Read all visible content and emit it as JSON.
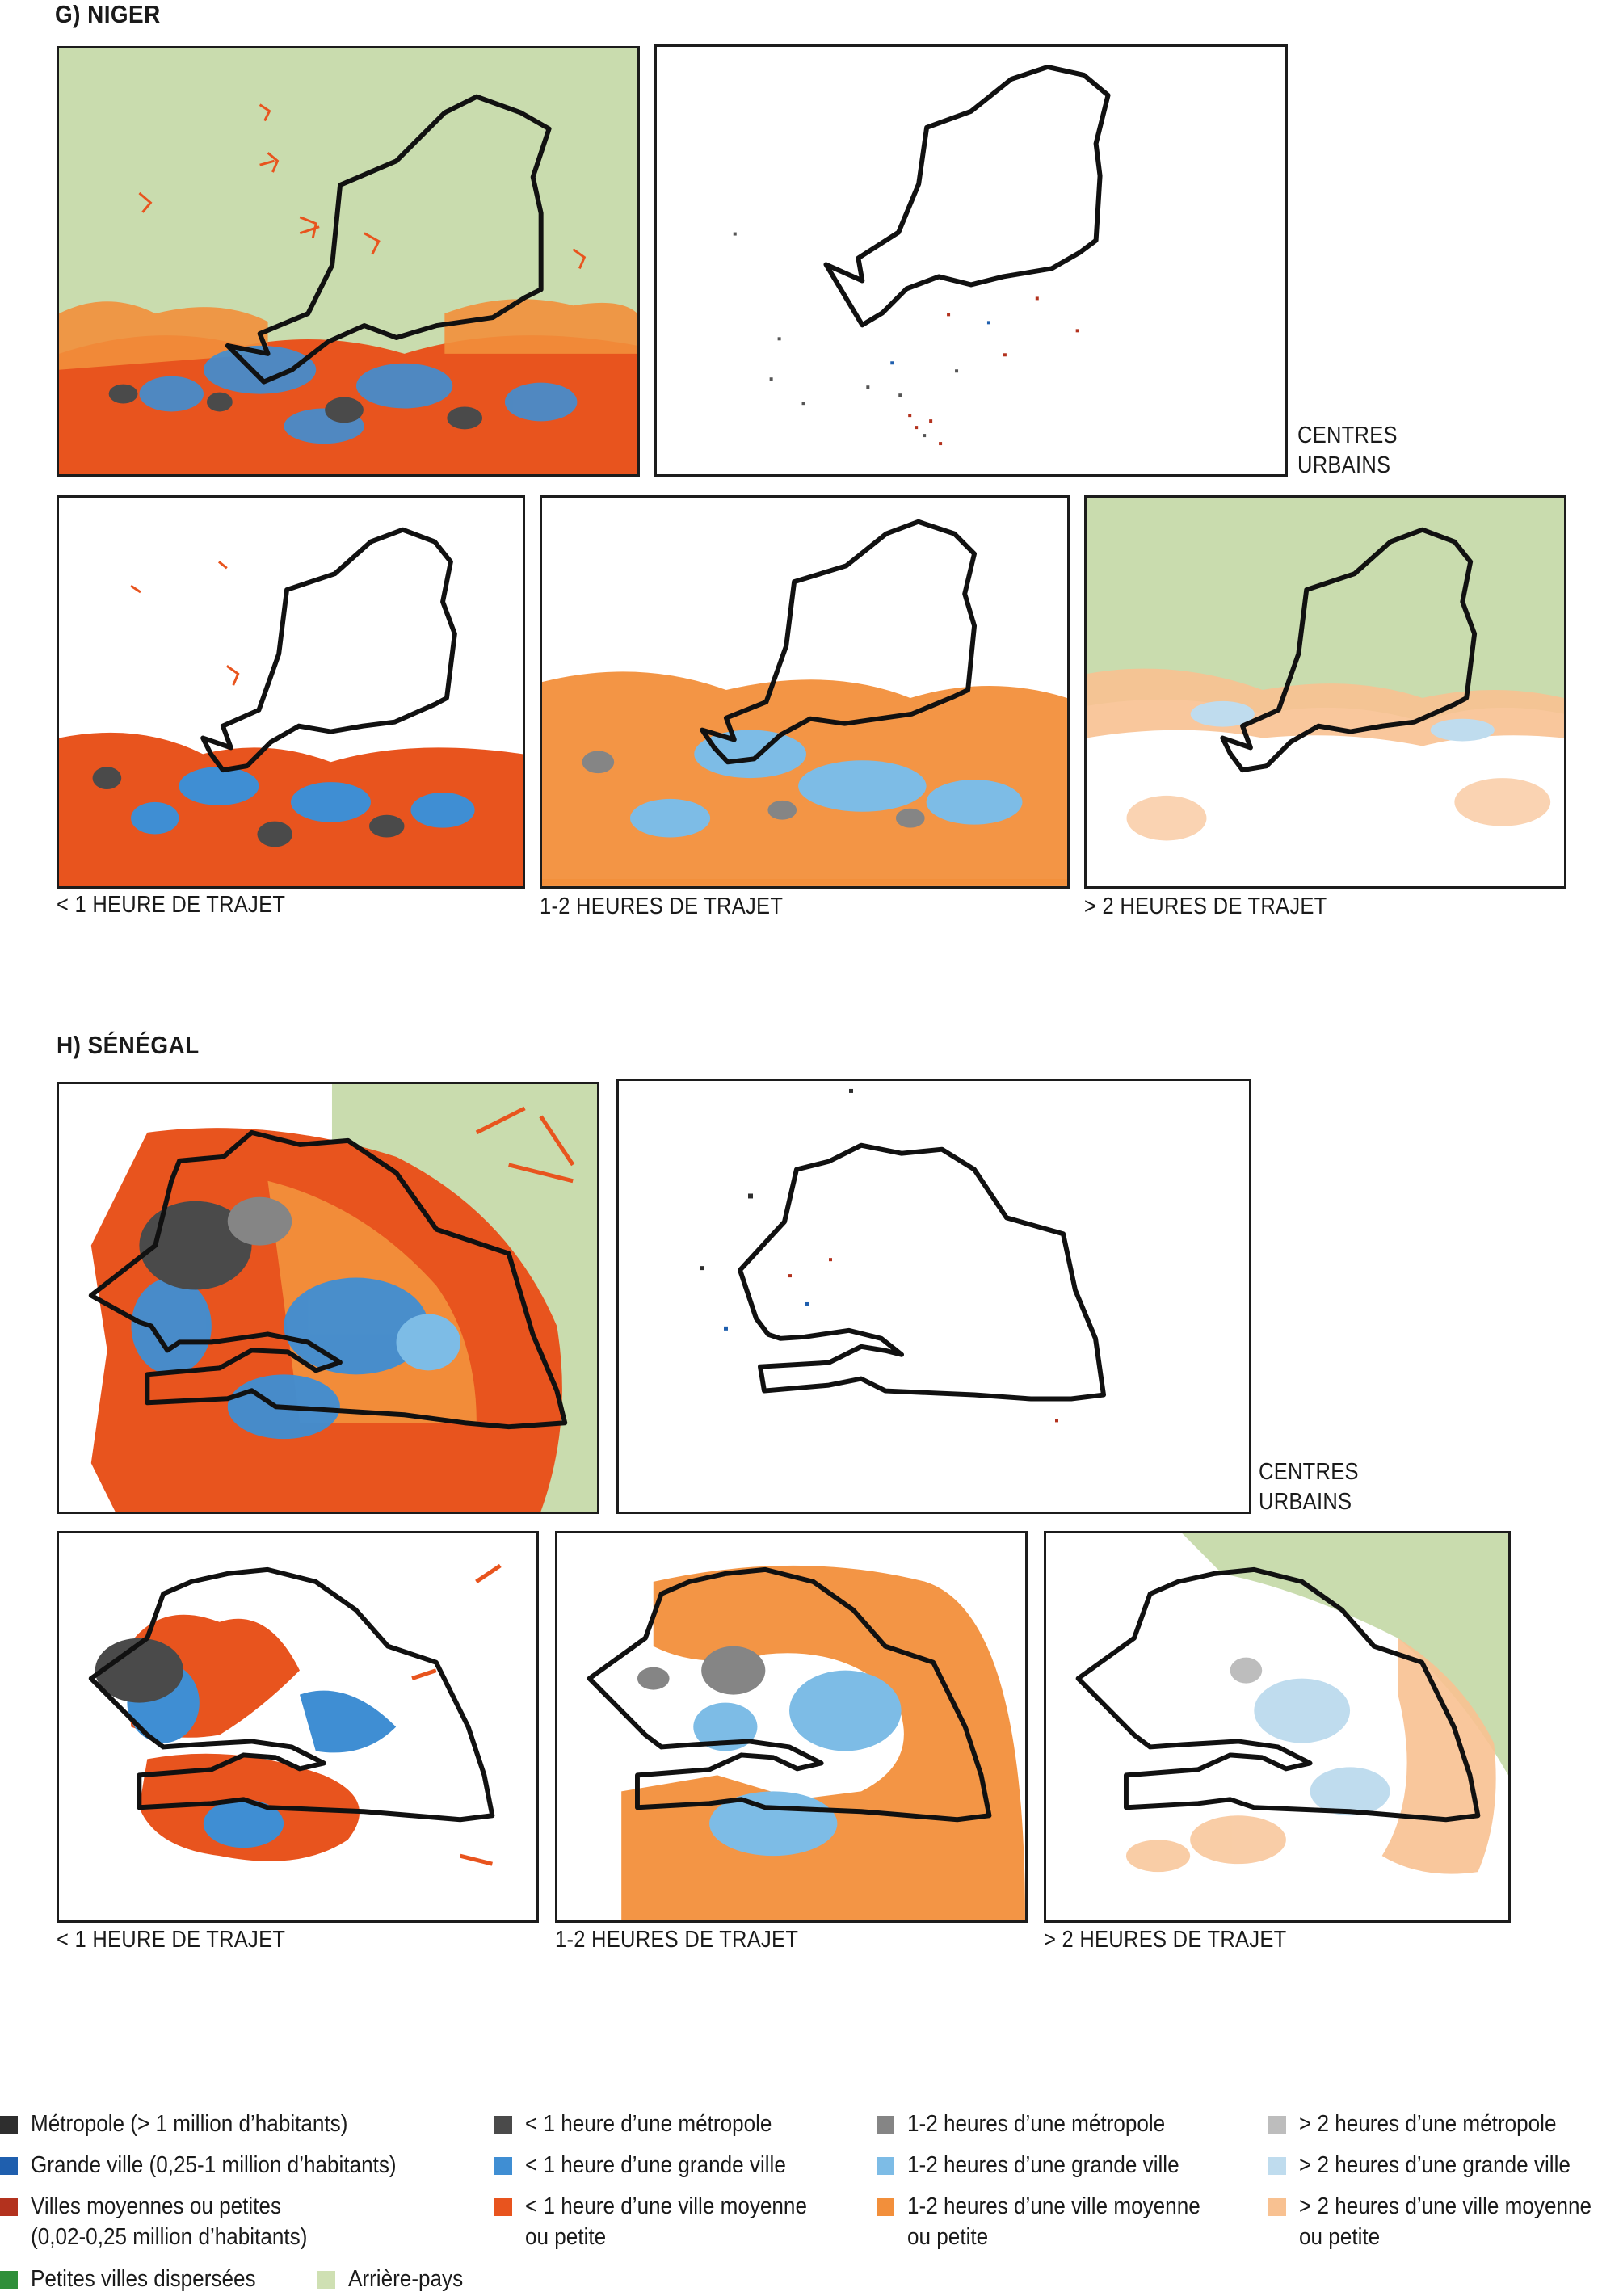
{
  "colors": {
    "metropole": "#2e2e2e",
    "grande_ville": "#1f5fae",
    "villes_moyennes": "#b3321e",
    "petites_villes": "#2f8f3a",
    "arriere_pays": "#cfe0b3",
    "lt1_metropole": "#4a4a4a",
    "lt1_grande": "#3f8ed3",
    "lt1_moyenne": "#e8541e",
    "h12_metropole": "#858585",
    "h12_grande": "#7dbce6",
    "h12_moyenne": "#f28f3b",
    "gt2_metropole": "#bdbdbd",
    "gt2_grande": "#bfdcee",
    "gt2_moyenne": "#f8c191",
    "land_green": "#c9dcae",
    "border": "#111111"
  },
  "sections": [
    {
      "title": "G) NIGER",
      "label_centres": [
        "CENTRES",
        "URBAINS"
      ],
      "captions": [
        "< 1 HEURE DE TRAJET",
        "1-2 HEURES DE TRAJET",
        "> 2 HEURES DE TRAJET"
      ]
    },
    {
      "title": "H) SÉNÉGAL",
      "label_centres": [
        "CENTRES",
        "URBAINS"
      ],
      "captions": [
        "< 1 HEURE DE TRAJET",
        "1-2 HEURES DE TRAJET",
        "> 2 HEURES DE TRAJET"
      ]
    }
  ],
  "legend": {
    "col1": [
      {
        "label": "Métropole (> 1 million d’habitants)",
        "color": "#2e2e2e"
      },
      {
        "label": "Grande ville (0,25-1 million d’habitants)",
        "color": "#1f5fae"
      },
      {
        "label": "Villes moyennes ou petites",
        "label2": "(0,02-0,25 million d’habitants)",
        "color": "#b3321e"
      },
      {
        "label": "Petites villes dispersées",
        "color": "#2f8f3a"
      }
    ],
    "arriere": {
      "label": "Arrière-pays",
      "color": "#cfe0b3"
    },
    "col2": [
      {
        "label": "< 1 heure d’une métropole",
        "color": "#4a4a4a"
      },
      {
        "label": "< 1 heure d’une grande ville",
        "color": "#3f8ed3"
      },
      {
        "label": "< 1 heure d’une ville moyenne",
        "label2": "ou petite",
        "color": "#e8541e"
      }
    ],
    "col3": [
      {
        "label": "1-2 heures d’une métropole",
        "color": "#858585"
      },
      {
        "label": "1-2 heures d’une grande ville",
        "color": "#7dbce6"
      },
      {
        "label": "1-2 heures d’une ville moyenne",
        "label2": "ou petite",
        "color": "#f28f3b"
      }
    ],
    "col4": [
      {
        "label": "> 2 heures d’une métropole",
        "color": "#bdbdbd"
      },
      {
        "label": "> 2 heures d’une grande ville",
        "color": "#bfdcee"
      },
      {
        "label": "> 2 heures d’une ville moyenne",
        "label2": "ou petite",
        "color": "#f8c191"
      }
    ]
  }
}
